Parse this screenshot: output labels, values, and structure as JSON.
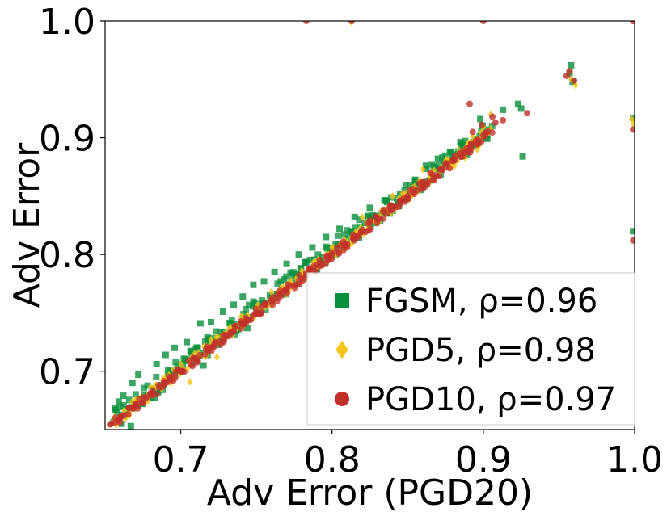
{
  "chart_data": {
    "type": "scatter",
    "title": "",
    "xlabel": "Adv Error (PGD20)",
    "ylabel": "Adv Error",
    "xlim": [
      0.65,
      1.0
    ],
    "ylim": [
      0.65,
      1.0
    ],
    "xticks": [
      "0.7",
      "0.8",
      "0.9",
      "1.0"
    ],
    "yticks": [
      "0.7",
      "0.8",
      "0.9",
      "1.0"
    ],
    "xtick_values": [
      0.7,
      0.8,
      0.9,
      1.0
    ],
    "ytick_values": [
      0.7,
      0.8,
      0.9,
      1.0
    ],
    "grid": false,
    "legend_position": "lower-right",
    "series": [
      {
        "name": "FGSM, ρ=0.96",
        "marker": "square",
        "color": "#0a8f3c",
        "trend": {
          "x_start": 0.655,
          "x_end": 0.905,
          "slope": 1.0,
          "offset": 0.004,
          "spread": 0.008
        },
        "points": [
          {
            "x": 0.958,
            "y": 0.962
          },
          {
            "x": 0.957,
            "y": 0.955
          },
          {
            "x": 0.959,
            "y": 0.948
          },
          {
            "x": 0.923,
            "y": 0.929
          },
          {
            "x": 0.925,
            "y": 0.925
          },
          {
            "x": 0.926,
            "y": 0.884
          },
          {
            "x": 0.913,
            "y": 0.924
          },
          {
            "x": 0.999,
            "y": 0.82
          },
          {
            "x": 0.999,
            "y": 0.917
          },
          {
            "x": 0.659,
            "y": 0.674
          },
          {
            "x": 0.662,
            "y": 0.679
          },
          {
            "x": 0.668,
            "y": 0.69
          },
          {
            "x": 0.672,
            "y": 0.697
          },
          {
            "x": 0.684,
            "y": 0.706
          },
          {
            "x": 0.69,
            "y": 0.714
          },
          {
            "x": 0.696,
            "y": 0.72
          },
          {
            "x": 0.704,
            "y": 0.725
          },
          {
            "x": 0.713,
            "y": 0.741
          },
          {
            "x": 0.72,
            "y": 0.742
          },
          {
            "x": 0.728,
            "y": 0.751
          },
          {
            "x": 0.735,
            "y": 0.757
          },
          {
            "x": 0.741,
            "y": 0.764
          },
          {
            "x": 0.748,
            "y": 0.774
          },
          {
            "x": 0.755,
            "y": 0.777
          },
          {
            "x": 0.762,
            "y": 0.785
          },
          {
            "x": 0.77,
            "y": 0.792
          },
          {
            "x": 0.778,
            "y": 0.8
          },
          {
            "x": 0.787,
            "y": 0.806
          },
          {
            "x": 0.796,
            "y": 0.815
          },
          {
            "x": 0.805,
            "y": 0.822
          },
          {
            "x": 0.815,
            "y": 0.832
          },
          {
            "x": 0.825,
            "y": 0.84
          },
          {
            "x": 0.835,
            "y": 0.846
          },
          {
            "x": 0.845,
            "y": 0.852
          },
          {
            "x": 0.855,
            "y": 0.864
          },
          {
            "x": 0.862,
            "y": 0.876
          },
          {
            "x": 0.87,
            "y": 0.882
          },
          {
            "x": 0.878,
            "y": 0.888
          },
          {
            "x": 0.886,
            "y": 0.893
          },
          {
            "x": 0.895,
            "y": 0.899
          },
          {
            "x": 0.902,
            "y": 0.907
          },
          {
            "x": 0.898,
            "y": 0.916
          },
          {
            "x": 0.661,
            "y": 0.655
          },
          {
            "x": 0.667,
            "y": 0.653
          },
          {
            "x": 0.675,
            "y": 0.672
          },
          {
            "x": 0.683,
            "y": 0.677
          },
          {
            "x": 0.715,
            "y": 0.705
          },
          {
            "x": 0.744,
            "y": 0.737
          }
        ]
      },
      {
        "name": "PGD5, ρ=0.98",
        "marker": "diamond",
        "color": "#f5c518",
        "trend": {
          "x_start": 0.655,
          "x_end": 0.905,
          "slope": 1.0,
          "offset": 0.001,
          "spread": 0.005
        },
        "points": [
          {
            "x": 0.958,
            "y": 0.95
          },
          {
            "x": 0.961,
            "y": 0.945
          },
          {
            "x": 0.998,
            "y": 0.916
          },
          {
            "x": 0.999,
            "y": 0.912
          },
          {
            "x": 0.813,
            "y": 0.999
          },
          {
            "x": 0.9,
            "y": 0.909
          },
          {
            "x": 0.893,
            "y": 0.901
          },
          {
            "x": 0.905,
            "y": 0.92
          },
          {
            "x": 0.896,
            "y": 0.89
          },
          {
            "x": 0.888,
            "y": 0.883
          },
          {
            "x": 0.881,
            "y": 0.876
          },
          {
            "x": 0.86,
            "y": 0.873
          },
          {
            "x": 0.84,
            "y": 0.85
          },
          {
            "x": 0.82,
            "y": 0.832
          },
          {
            "x": 0.81,
            "y": 0.81
          },
          {
            "x": 0.8,
            "y": 0.806
          },
          {
            "x": 0.79,
            "y": 0.79
          },
          {
            "x": 0.78,
            "y": 0.786
          },
          {
            "x": 0.77,
            "y": 0.77
          },
          {
            "x": 0.76,
            "y": 0.768
          },
          {
            "x": 0.75,
            "y": 0.75
          },
          {
            "x": 0.74,
            "y": 0.747
          },
          {
            "x": 0.73,
            "y": 0.731
          },
          {
            "x": 0.72,
            "y": 0.727
          },
          {
            "x": 0.71,
            "y": 0.71
          },
          {
            "x": 0.7,
            "y": 0.706
          },
          {
            "x": 0.69,
            "y": 0.691
          },
          {
            "x": 0.68,
            "y": 0.686
          },
          {
            "x": 0.67,
            "y": 0.668
          },
          {
            "x": 0.662,
            "y": 0.663
          },
          {
            "x": 0.706,
            "y": 0.691
          },
          {
            "x": 0.724,
            "y": 0.712
          }
        ]
      },
      {
        "name": "PGD10, ρ=0.97",
        "marker": "circle",
        "color": "#c0302b",
        "trend": {
          "x_start": 0.655,
          "x_end": 0.905,
          "slope": 1.0,
          "offset": 0.0,
          "spread": 0.004
        },
        "points": [
          {
            "x": 0.783,
            "y": 1.0
          },
          {
            "x": 0.813,
            "y": 1.0
          },
          {
            "x": 0.9,
            "y": 1.0
          },
          {
            "x": 0.999,
            "y": 1.0
          },
          {
            "x": 0.999,
            "y": 0.907
          },
          {
            "x": 0.999,
            "y": 0.812
          },
          {
            "x": 0.957,
            "y": 0.957
          },
          {
            "x": 0.955,
            "y": 0.953
          },
          {
            "x": 0.96,
            "y": 0.949
          },
          {
            "x": 0.891,
            "y": 0.929
          },
          {
            "x": 0.929,
            "y": 0.921
          },
          {
            "x": 0.913,
            "y": 0.915
          },
          {
            "x": 0.893,
            "y": 0.905
          },
          {
            "x": 0.899,
            "y": 0.911
          },
          {
            "x": 0.908,
            "y": 0.913
          },
          {
            "x": 0.906,
            "y": 0.918
          },
          {
            "x": 0.9,
            "y": 0.902
          },
          {
            "x": 0.889,
            "y": 0.891
          },
          {
            "x": 0.88,
            "y": 0.88
          },
          {
            "x": 0.872,
            "y": 0.873
          },
          {
            "x": 0.86,
            "y": 0.862
          },
          {
            "x": 0.85,
            "y": 0.85
          },
          {
            "x": 0.84,
            "y": 0.841
          },
          {
            "x": 0.83,
            "y": 0.83
          },
          {
            "x": 0.82,
            "y": 0.821
          },
          {
            "x": 0.81,
            "y": 0.809
          },
          {
            "x": 0.8,
            "y": 0.8
          },
          {
            "x": 0.79,
            "y": 0.791
          },
          {
            "x": 0.78,
            "y": 0.779
          },
          {
            "x": 0.77,
            "y": 0.77
          },
          {
            "x": 0.76,
            "y": 0.761
          },
          {
            "x": 0.75,
            "y": 0.75
          },
          {
            "x": 0.74,
            "y": 0.741
          },
          {
            "x": 0.73,
            "y": 0.73
          },
          {
            "x": 0.72,
            "y": 0.72
          },
          {
            "x": 0.71,
            "y": 0.711
          },
          {
            "x": 0.7,
            "y": 0.7
          },
          {
            "x": 0.69,
            "y": 0.69
          },
          {
            "x": 0.68,
            "y": 0.681
          },
          {
            "x": 0.67,
            "y": 0.671
          },
          {
            "x": 0.66,
            "y": 0.66
          },
          {
            "x": 0.654,
            "y": 0.655
          },
          {
            "x": 0.865,
            "y": 0.87
          },
          {
            "x": 0.845,
            "y": 0.846
          }
        ]
      }
    ]
  }
}
